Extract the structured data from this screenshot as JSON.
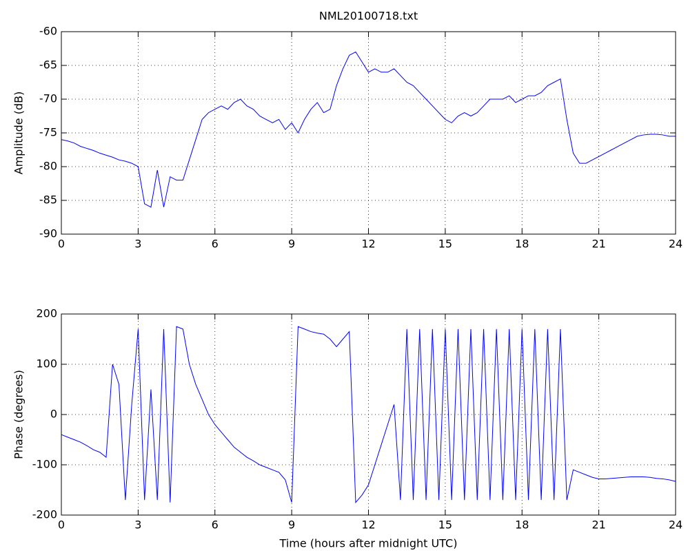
{
  "chart_data": [
    {
      "type": "line",
      "title": "NML20100718.txt",
      "y_label": "Amplitude (dB)",
      "color": "#0000ff",
      "grid": true,
      "x": [
        0,
        0.25,
        0.5,
        0.75,
        1,
        1.25,
        1.5,
        1.75,
        2,
        2.25,
        2.5,
        2.75,
        3,
        3.25,
        3.5,
        3.75,
        4,
        4.25,
        4.5,
        4.75,
        5,
        5.25,
        5.5,
        5.75,
        6,
        6.25,
        6.5,
        6.75,
        7,
        7.25,
        7.5,
        7.75,
        8,
        8.25,
        8.5,
        8.75,
        9,
        9.25,
        9.5,
        9.75,
        10,
        10.25,
        10.5,
        10.75,
        11,
        11.25,
        11.5,
        11.75,
        12,
        12.25,
        12.5,
        12.75,
        13,
        13.25,
        13.5,
        13.75,
        14,
        14.25,
        14.5,
        14.75,
        15,
        15.25,
        15.5,
        15.75,
        16,
        16.25,
        16.5,
        16.75,
        17,
        17.25,
        17.5,
        17.75,
        18,
        18.25,
        18.5,
        18.75,
        19,
        19.25,
        19.5,
        19.75,
        20,
        20.25,
        20.5,
        20.75,
        21,
        21.25,
        21.5,
        21.75,
        22,
        22.25,
        22.5,
        22.75,
        23,
        23.25,
        23.5,
        23.75,
        24
      ],
      "values": [
        -76,
        -76.2,
        -76.5,
        -77,
        -77.3,
        -77.6,
        -78,
        -78.3,
        -78.6,
        -79,
        -79.2,
        -79.5,
        -80,
        -85.5,
        -86,
        -80.5,
        -86,
        -81.5,
        -82,
        -82,
        -79,
        -76,
        -73,
        -72,
        -71.5,
        -71,
        -71.5,
        -70.5,
        -70,
        -71,
        -71.5,
        -72.5,
        -73,
        -73.5,
        -73,
        -74.5,
        -73.5,
        -75,
        -73,
        -71.5,
        -70.5,
        -72,
        -71.5,
        -68,
        -65.5,
        -63.5,
        -63,
        -64.5,
        -66,
        -65.5,
        -66,
        -66,
        -65.5,
        -66.5,
        -67.5,
        -68,
        -69,
        -70,
        -71,
        -72,
        -73,
        -73.5,
        -72.5,
        -72,
        -72.5,
        -72,
        -71,
        -70,
        -70,
        -70,
        -69.5,
        -70.5,
        -70,
        -69.5,
        -69.5,
        -69,
        -68,
        -67.5,
        -67,
        -73,
        -78,
        -79.5,
        -79.5,
        -79,
        -78.5,
        -78,
        -77.5,
        -77,
        -76.5,
        -76,
        -75.5,
        -75.3,
        -75.2,
        -75.2,
        -75.3,
        -75.5,
        -75.5
      ],
      "xlim": [
        0,
        24
      ],
      "xticks": [
        0,
        3,
        6,
        9,
        12,
        15,
        18,
        21,
        24
      ],
      "ylim": [
        -90,
        -60
      ],
      "yticks": [
        -90,
        -85,
        -80,
        -75,
        -70,
        -65,
        -60
      ]
    },
    {
      "type": "line",
      "x_label": "Time (hours after midnight UTC)",
      "y_label": "Phase (degrees)",
      "color": "#0000ff",
      "grid": true,
      "x": [
        0,
        0.25,
        0.5,
        0.75,
        1,
        1.25,
        1.5,
        1.75,
        2,
        2.25,
        2.5,
        2.75,
        3,
        3.25,
        3.5,
        3.75,
        4,
        4.25,
        4.5,
        4.75,
        5,
        5.25,
        5.5,
        5.75,
        6,
        6.25,
        6.5,
        6.75,
        7,
        7.25,
        7.5,
        7.75,
        8,
        8.25,
        8.5,
        8.75,
        9,
        9.25,
        9.5,
        9.75,
        10,
        10.25,
        10.5,
        10.75,
        11,
        11.25,
        11.5,
        11.75,
        12,
        12.25,
        12.5,
        12.75,
        13,
        13.25,
        13.5,
        13.75,
        14,
        14.25,
        14.5,
        14.75,
        15,
        15.25,
        15.5,
        15.75,
        16,
        16.25,
        16.5,
        16.75,
        17,
        17.25,
        17.5,
        17.75,
        18,
        18.25,
        18.5,
        18.75,
        19,
        19.25,
        19.5,
        19.75,
        20,
        20.25,
        20.5,
        20.75,
        21,
        21.25,
        21.5,
        21.75,
        22,
        22.25,
        22.5,
        22.75,
        23,
        23.25,
        23.5,
        23.75,
        24
      ],
      "values": [
        -40,
        -45,
        -50,
        -55,
        -62,
        -70,
        -75,
        -85,
        100,
        60,
        -170,
        20,
        170,
        -170,
        50,
        -170,
        170,
        -175,
        175,
        170,
        100,
        60,
        30,
        0,
        -20,
        -35,
        -50,
        -65,
        -75,
        -85,
        -92,
        -100,
        -105,
        -110,
        -115,
        -130,
        -175,
        175,
        170,
        165,
        162,
        160,
        150,
        135,
        150,
        165,
        -175,
        -160,
        -140,
        -100,
        -60,
        -20,
        20,
        -170,
        170,
        -170,
        170,
        -170,
        170,
        -170,
        170,
        -170,
        170,
        -170,
        170,
        -170,
        170,
        -170,
        170,
        -170,
        170,
        -170,
        170,
        -170,
        170,
        -170,
        170,
        -170,
        170,
        -170,
        -110,
        -115,
        -120,
        -125,
        -128,
        -128,
        -127,
        -126,
        -125,
        -124,
        -124,
        -124,
        -125,
        -127,
        -128,
        -130,
        -133
      ],
      "xlim": [
        0,
        24
      ],
      "xticks": [
        0,
        3,
        6,
        9,
        12,
        15,
        18,
        21,
        24
      ],
      "ylim": [
        -200,
        200
      ],
      "yticks": [
        -200,
        -100,
        0,
        100,
        200
      ]
    }
  ]
}
